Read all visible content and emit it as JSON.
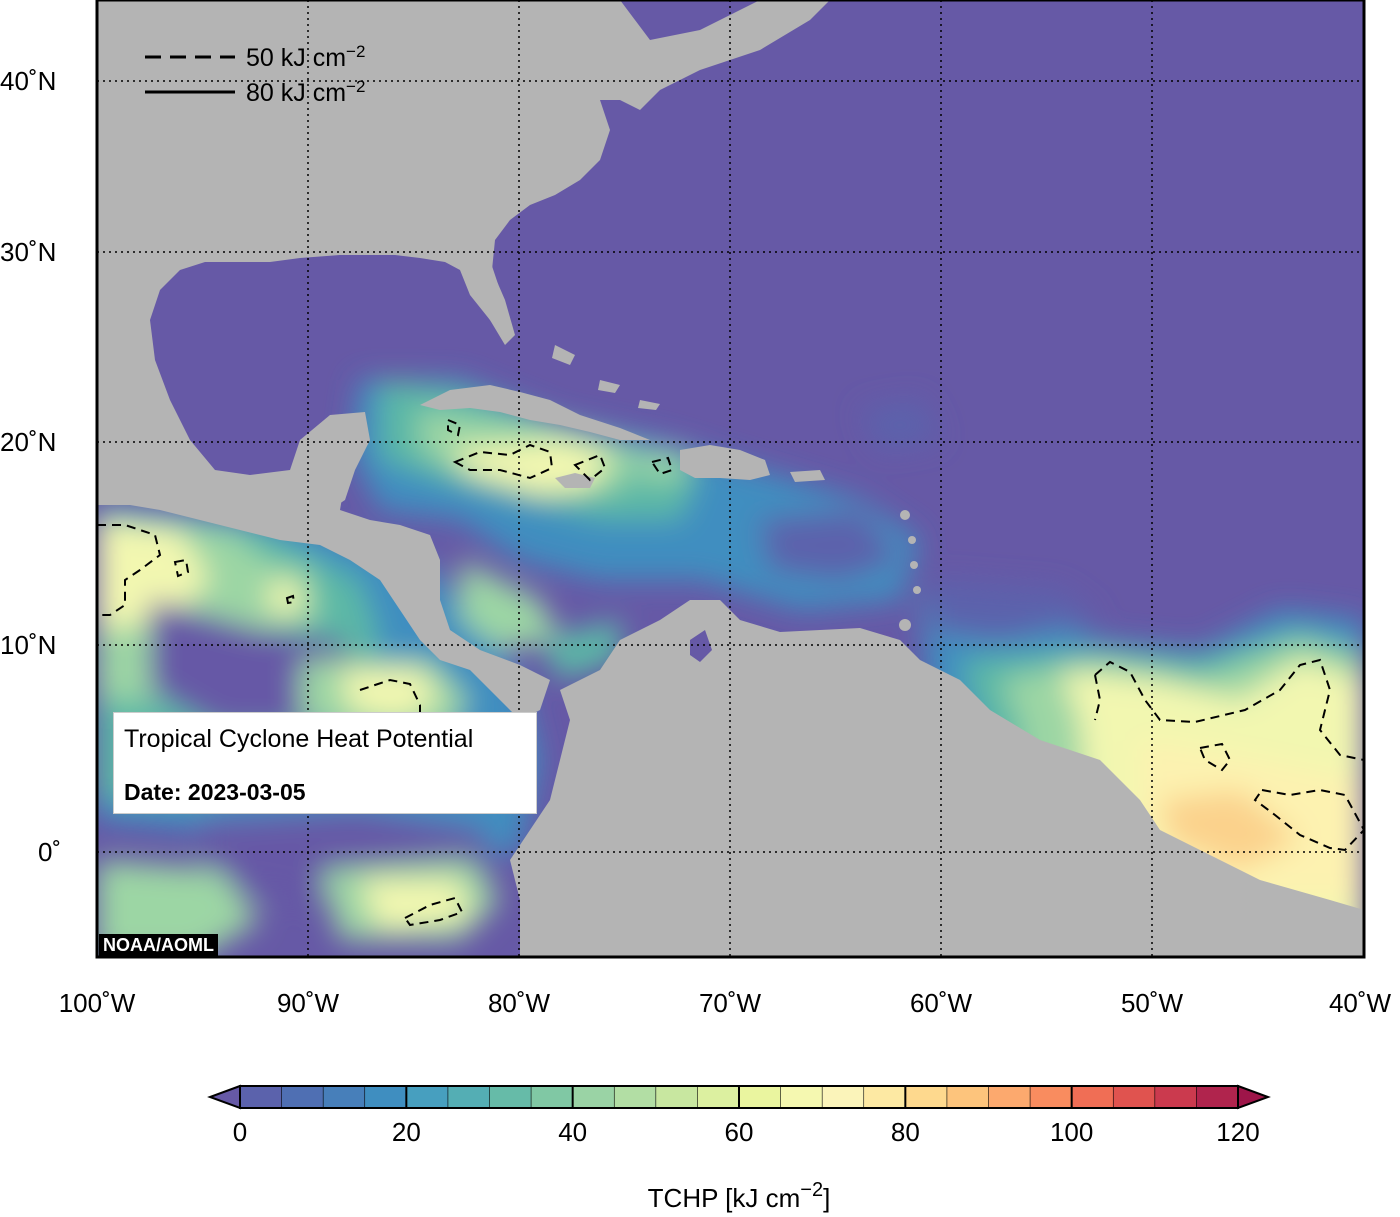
{
  "map": {
    "title": "Tropical Cyclone Heat Potential",
    "date_label": "Date: 2023-03-05",
    "credit": "NOAA/AOML",
    "lat_ticks": [
      "40˚N",
      "30˚N",
      "20˚N",
      "10˚N",
      "0˚"
    ],
    "lon_ticks": [
      "100˚W",
      "90˚W",
      "80˚W",
      "70˚W",
      "60˚W",
      "50˚W",
      "40˚W"
    ],
    "extent": {
      "lon_min": -100,
      "lon_max": -40,
      "lat_min": -5,
      "lat_max": 45
    },
    "grid": true,
    "colors": {
      "land": "#b4b4b4",
      "low": "#6659a6",
      "ocean_mid": "#3f8ec0",
      "teal": "#5cb8a6",
      "green": "#9cd6a4",
      "yellow": "#f2f7b0",
      "cream": "#fdf2b0",
      "orange": "#fbd28c"
    }
  },
  "legend": {
    "dashed_label": "50 kJ cm",
    "solid_label": "80 kJ cm",
    "superscript": "−2"
  },
  "colorbar": {
    "title": "TCHP [kJ cm",
    "title_sup": "−2",
    "title_end": "]",
    "ticks": [
      "0",
      "20",
      "40",
      "60",
      "80",
      "100",
      "120"
    ],
    "min": 0,
    "max": 120,
    "step": 5,
    "colors": [
      "#6659a6",
      "#5b62ac",
      "#4f6fb3",
      "#477fba",
      "#3f8ec0",
      "#479fbf",
      "#54aeb4",
      "#66bba8",
      "#80c8a4",
      "#9ad3a5",
      "#b2deA4",
      "#c8e7a0",
      "#dcf0a0",
      "#eaf59f",
      "#f5f8b0",
      "#fbf4ba",
      "#fde9a3",
      "#fed98e",
      "#fdc47c",
      "#fca96e",
      "#f98c5f",
      "#f06e55",
      "#e0534f",
      "#cb3a4e",
      "#b0244d",
      "#9e1549"
    ]
  }
}
